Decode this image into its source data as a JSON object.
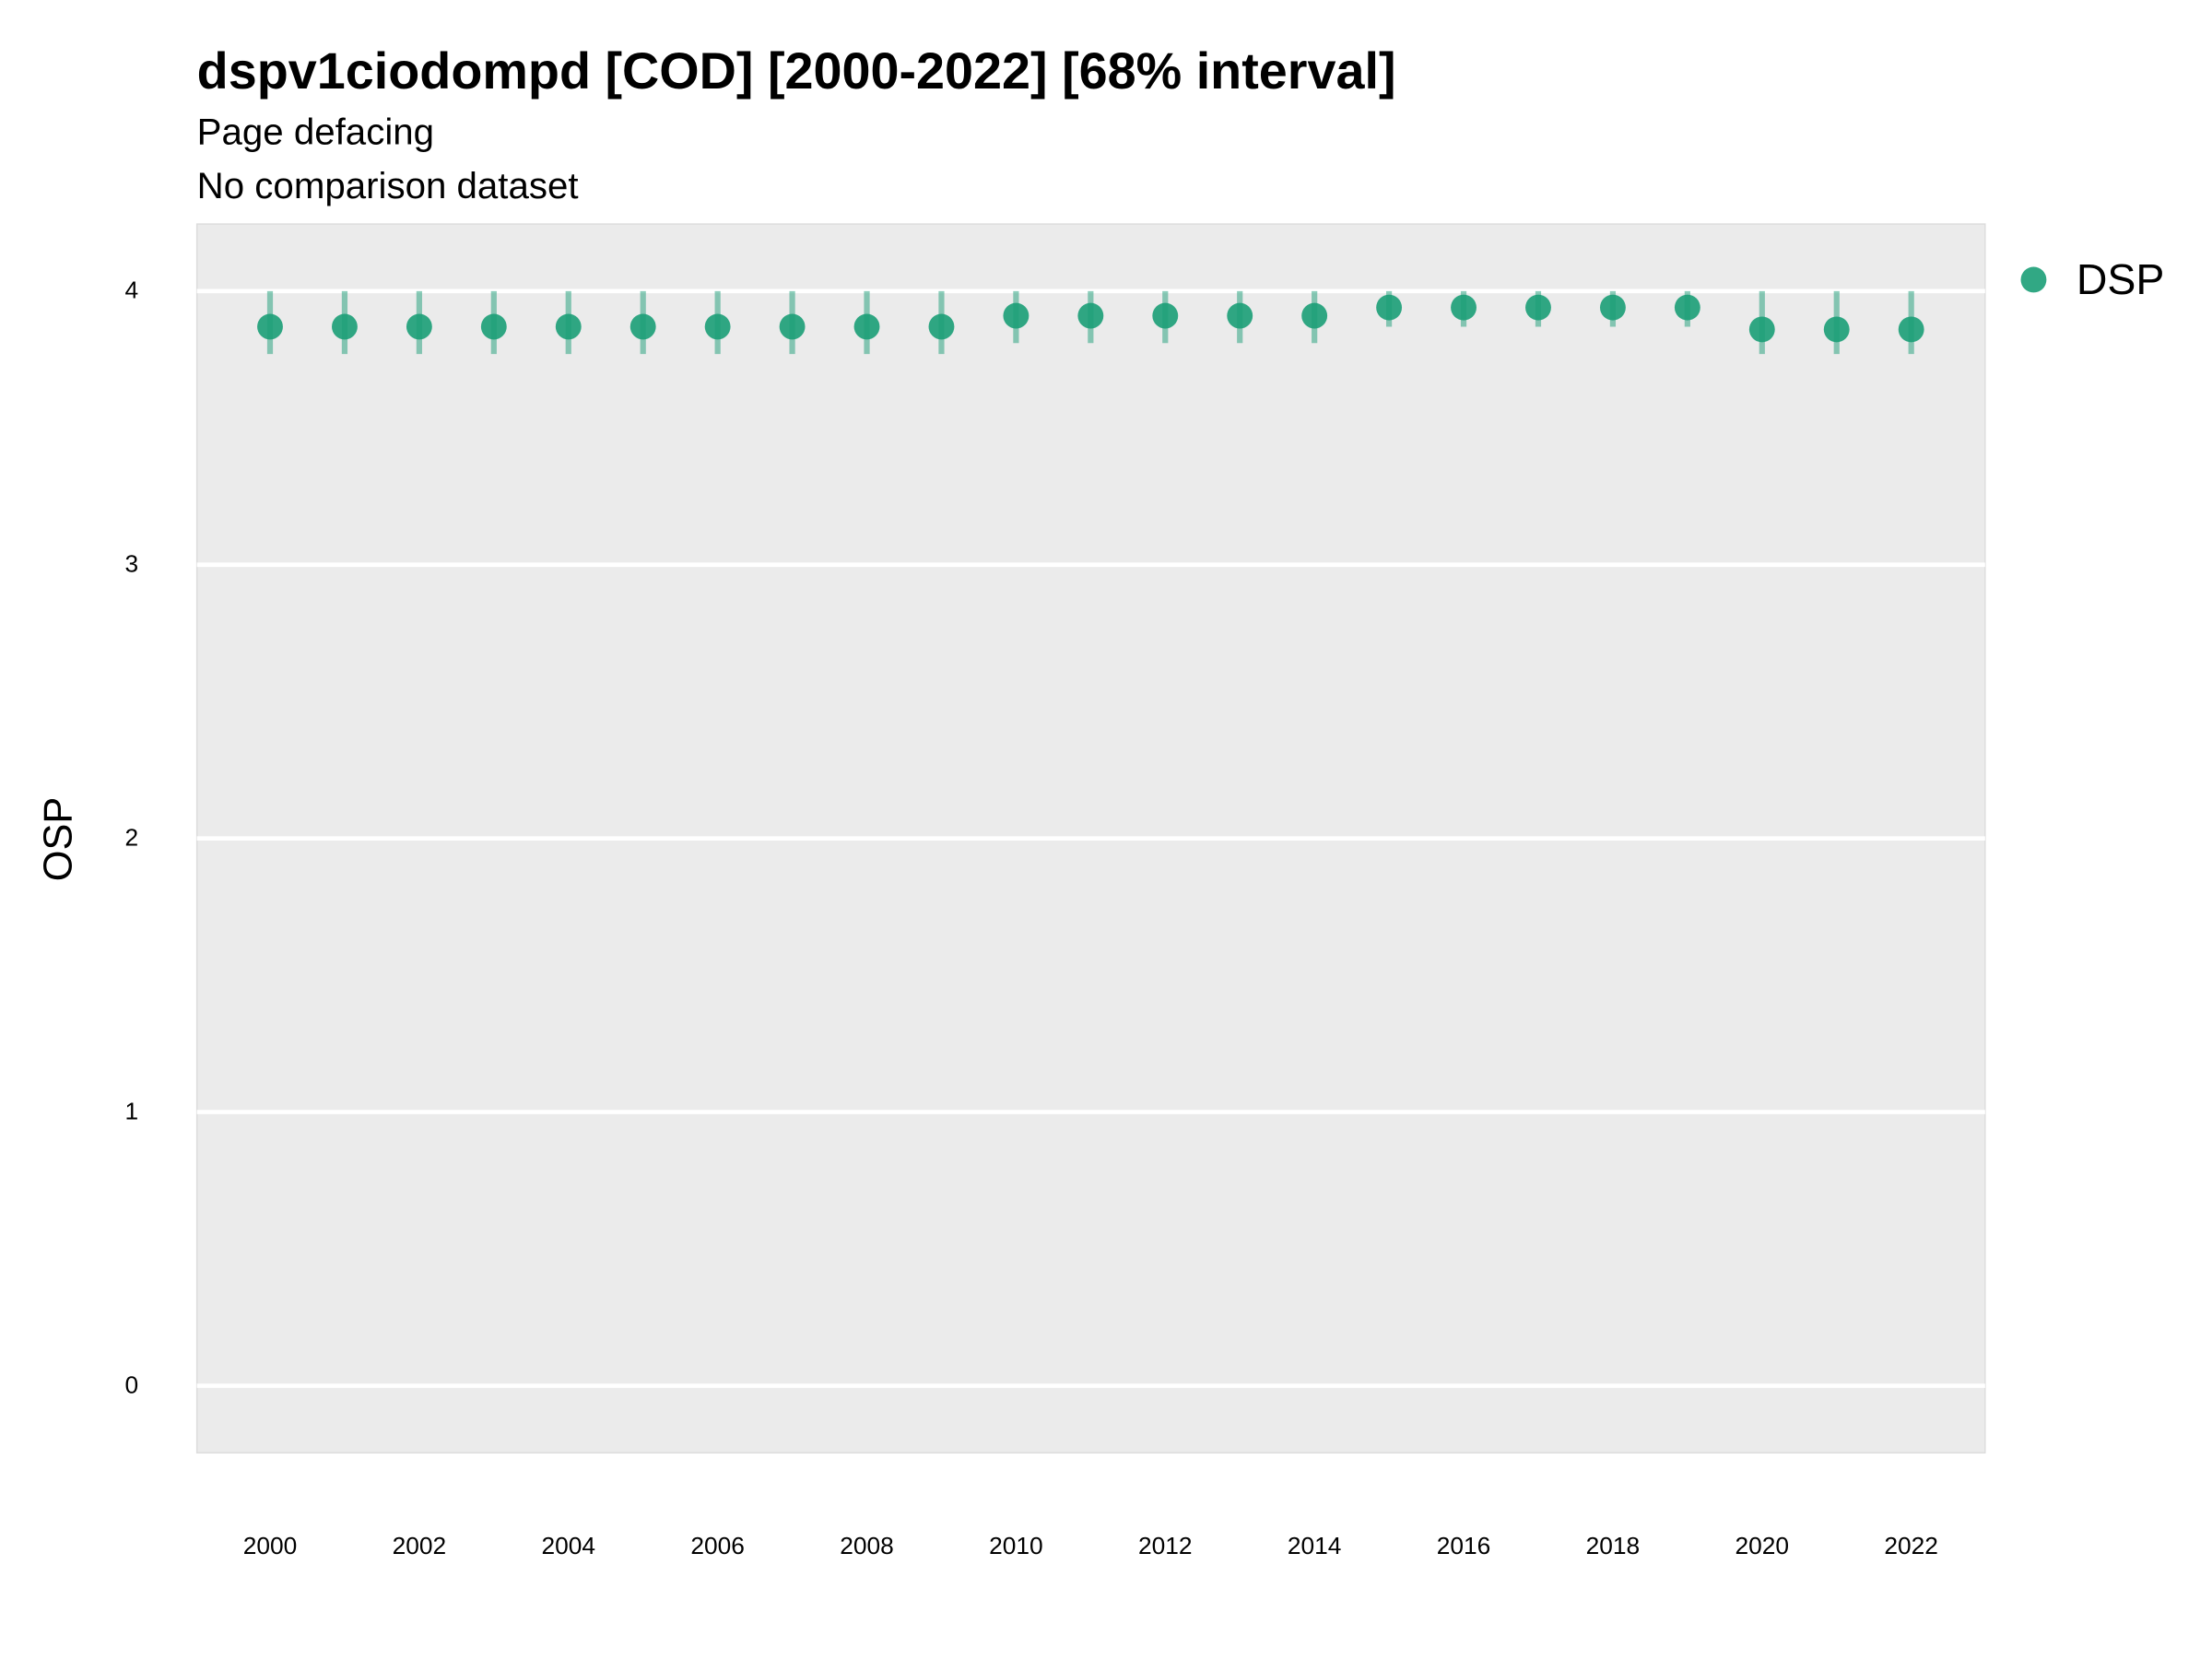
{
  "chart_data": {
    "type": "pointrange",
    "title": "dspv1ciodompd [COD] [2000-2022] [68% interval]",
    "subtitle": [
      "Page defacing",
      "No comparison dataset"
    ],
    "y_label": "OSP",
    "x": [
      2000,
      2001,
      2002,
      2003,
      2004,
      2005,
      2006,
      2007,
      2008,
      2009,
      2010,
      2011,
      2012,
      2013,
      2014,
      2015,
      2016,
      2017,
      2018,
      2019,
      2020,
      2021,
      2022
    ],
    "series": [
      {
        "name": "DSP",
        "color": "#1b9e77",
        "values": [
          3.87,
          3.87,
          3.87,
          3.87,
          3.87,
          3.87,
          3.87,
          3.87,
          3.87,
          3.87,
          3.91,
          3.91,
          3.91,
          3.91,
          3.91,
          3.94,
          3.94,
          3.94,
          3.94,
          3.94,
          3.86,
          3.86,
          3.86
        ],
        "lower": [
          3.77,
          3.77,
          3.77,
          3.77,
          3.77,
          3.77,
          3.77,
          3.77,
          3.77,
          3.77,
          3.81,
          3.81,
          3.81,
          3.81,
          3.81,
          3.87,
          3.87,
          3.87,
          3.87,
          3.87,
          3.77,
          3.77,
          3.77
        ],
        "upper": [
          4.0,
          4.0,
          4.0,
          4.0,
          4.0,
          4.0,
          4.0,
          4.0,
          4.0,
          4.0,
          4.0,
          4.0,
          4.0,
          4.0,
          4.0,
          4.0,
          4.0,
          4.0,
          4.0,
          4.0,
          4.0,
          4.0,
          4.0
        ]
      }
    ],
    "xlim": [
      1999.02,
      2022.99
    ],
    "xticks": [
      2000,
      2002,
      2004,
      2006,
      2008,
      2010,
      2012,
      2014,
      2016,
      2018,
      2020,
      2022
    ],
    "ylim": [
      -0.245,
      4.245
    ],
    "yticks": [
      0,
      1,
      2,
      3,
      4
    ],
    "grid": true,
    "legend": "right"
  }
}
